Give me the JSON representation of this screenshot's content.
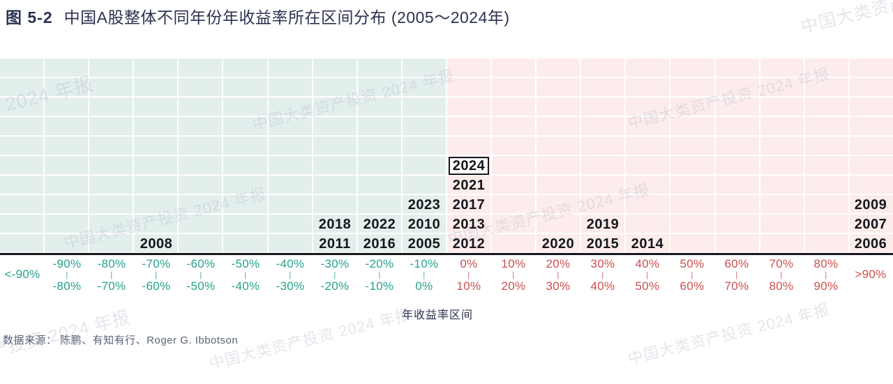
{
  "title": {
    "label": "图 5-2",
    "text": "中国A股整体不同年份年收益率所在区间分布 (2005～2024年)"
  },
  "axis": {
    "x_title": "年收益率区间"
  },
  "source": "数据来源： 陈鹏、有知有行、Roger G. Ibbotson",
  "watermark_text": "中国大类资产投资 2024 年报",
  "colors": {
    "negative_bg": "#e3efec",
    "positive_bg": "#fdecec",
    "negative_text": "#26a28d",
    "positive_text": "#cc4f4e",
    "title_navy": "#2d3150",
    "year_text": "#15161b"
  },
  "chart_data": {
    "type": "bar",
    "title": "中国A股整体不同年份年收益率所在区间分布 (2005～2024年)",
    "xlabel": "年收益率区间",
    "ylabel": "",
    "grid": {
      "rows": 10,
      "cols": 20
    },
    "legend": "none",
    "note": "每个年份按其年收益率落入对应区间堆叠；2024 年加框突出显示",
    "bins": [
      {
        "label": "<-90%",
        "single": true,
        "sign": "neg",
        "years": []
      },
      {
        "from": "-90%",
        "to": "-80%",
        "sign": "neg",
        "years": []
      },
      {
        "from": "-80%",
        "to": "-70%",
        "sign": "neg",
        "years": []
      },
      {
        "from": "-70%",
        "to": "-60%",
        "sign": "neg",
        "years": [
          "2008"
        ]
      },
      {
        "from": "-60%",
        "to": "-50%",
        "sign": "neg",
        "years": []
      },
      {
        "from": "-50%",
        "to": "-40%",
        "sign": "neg",
        "years": []
      },
      {
        "from": "-40%",
        "to": "-30%",
        "sign": "neg",
        "years": []
      },
      {
        "from": "-30%",
        "to": "-20%",
        "sign": "neg",
        "years": [
          "2011",
          "2018"
        ]
      },
      {
        "from": "-20%",
        "to": "-10%",
        "sign": "neg",
        "years": [
          "2016",
          "2022"
        ]
      },
      {
        "from": "-10%",
        "to": "0%",
        "sign": "neg",
        "years": [
          "2005",
          "2010",
          "2023"
        ]
      },
      {
        "from": "0%",
        "to": "10%",
        "sign": "pos",
        "years": [
          "2012",
          "2013",
          "2017",
          "2021",
          "2024"
        ],
        "boxed_year": "2024"
      },
      {
        "from": "10%",
        "to": "20%",
        "sign": "pos",
        "years": []
      },
      {
        "from": "20%",
        "to": "30%",
        "sign": "pos",
        "years": [
          "2020"
        ]
      },
      {
        "from": "30%",
        "to": "40%",
        "sign": "pos",
        "years": [
          "2015",
          "2019"
        ]
      },
      {
        "from": "40%",
        "to": "50%",
        "sign": "pos",
        "years": [
          "2014"
        ]
      },
      {
        "from": "50%",
        "to": "60%",
        "sign": "pos",
        "years": []
      },
      {
        "from": "60%",
        "to": "70%",
        "sign": "pos",
        "years": []
      },
      {
        "from": "70%",
        "to": "80%",
        "sign": "pos",
        "years": []
      },
      {
        "from": "80%",
        "to": "90%",
        "sign": "pos",
        "years": []
      },
      {
        "label": ">90%",
        "single": true,
        "sign": "pos",
        "years": [
          "2006",
          "2007",
          "2009"
        ]
      }
    ]
  }
}
